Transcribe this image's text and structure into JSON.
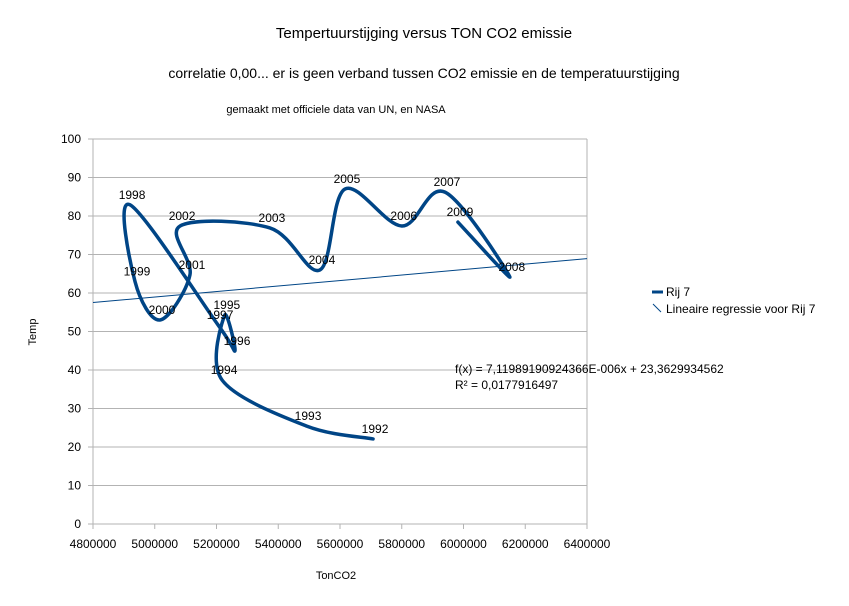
{
  "chart_data": {
    "type": "line",
    "title": "Tempertuurstijging versus TON CO2 emissie",
    "subtitle": "correlatie 0,00... er is geen verband tussen CO2 emissie en de temperatuurstijging",
    "note": "gemaakt met officiele data van UN, en NASA",
    "xlabel": "TonCO2",
    "ylabel": "Temp",
    "xlim": [
      4800000,
      6400000
    ],
    "ylim": [
      0,
      100
    ],
    "xticks": [
      4800000,
      5000000,
      5200000,
      5400000,
      5600000,
      5800000,
      6000000,
      6200000,
      6400000
    ],
    "yticks": [
      0,
      10,
      20,
      30,
      40,
      50,
      60,
      70,
      80,
      90,
      100
    ],
    "grid": "horizontal",
    "legend_position": "right",
    "series": [
      {
        "name": "Rij 7",
        "color": "#004586",
        "points": [
          {
            "label": "1992",
            "x": 5707000,
            "y": 22.1
          },
          {
            "label": "1993",
            "x": 5490000,
            "y": 25.5
          },
          {
            "label": "1994",
            "x": 5218000,
            "y": 37.4
          },
          {
            "label": "1995",
            "x": 5227000,
            "y": 54.3
          },
          {
            "label": "1996",
            "x": 5260000,
            "y": 45.0
          },
          {
            "label": "1997",
            "x": 5205000,
            "y": 51.7
          },
          {
            "label": "1998",
            "x": 4920000,
            "y": 82.9
          },
          {
            "label": "1999",
            "x": 4936000,
            "y": 63.0
          },
          {
            "label": "2000",
            "x": 5017000,
            "y": 53.0
          },
          {
            "label": "2001",
            "x": 5114000,
            "y": 64.7
          },
          {
            "label": "2002",
            "x": 5082000,
            "y": 77.4
          },
          {
            "label": "2003",
            "x": 5373000,
            "y": 76.9
          },
          {
            "label": "2004",
            "x": 5535000,
            "y": 66.0
          },
          {
            "label": "2005",
            "x": 5616000,
            "y": 87.0
          },
          {
            "label": "2006",
            "x": 5800000,
            "y": 77.4
          },
          {
            "label": "2007",
            "x": 5940000,
            "y": 86.2
          },
          {
            "label": "2008",
            "x": 6150000,
            "y": 64.2
          },
          {
            "label": "2009",
            "x": 5982000,
            "y": 78.4
          }
        ]
      }
    ],
    "regression": {
      "name": "Lineaire regressie voor Rij 7",
      "color": "#004586",
      "slope": 7.11989190924366e-06,
      "intercept": 23.3629934562,
      "equation": "f(x) = 7,11989190924366E-006x + 23,3629934562",
      "r2": "R² = 0,0177916497"
    }
  }
}
